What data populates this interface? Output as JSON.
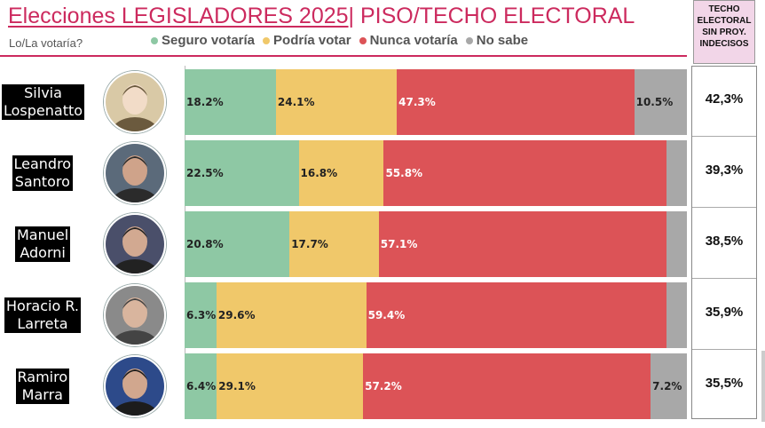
{
  "header": {
    "title_part1": "Elecciones LEGISLADORES 2025",
    "title_sep": "|",
    "title_part2": " PISO/TECHO ELECTORAL",
    "subtitle": "Lo/La votaría?"
  },
  "techo_header": [
    "TECHO",
    "ELECTORAL",
    "SIN PROY.",
    "INDECISOS"
  ],
  "colors": {
    "seguro": "#8ec8a4",
    "podria": "#f0c86a",
    "nunca": "#dc5357",
    "nosabe": "#a8a8a8",
    "accent": "#cc2a5e"
  },
  "chart_data": {
    "type": "bar",
    "orientation": "horizontal",
    "stacked": true,
    "categories": [
      "Silvia Lospenatto",
      "Leandro Santoro",
      "Manuel Adorni",
      "Horacio R. Larreta",
      "Ramiro Marra"
    ],
    "name_lines": [
      [
        "Silvia",
        "Lospenatto"
      ],
      [
        "Leandro",
        "Santoro"
      ],
      [
        "Manuel",
        "Adorni"
      ],
      [
        "Horacio R.",
        "Larreta"
      ],
      [
        "Ramiro",
        "Marra"
      ]
    ],
    "series": [
      {
        "name": "Seguro votaría",
        "key": "seguro",
        "values": [
          18.2,
          22.5,
          20.8,
          6.3,
          6.4
        ],
        "labels": [
          "18.2%",
          "22.5%",
          "20.8%",
          "6.3%",
          "6.4%"
        ]
      },
      {
        "name": "Podría votar",
        "key": "podria",
        "values": [
          24.1,
          16.8,
          17.7,
          29.6,
          29.1
        ],
        "labels": [
          "24.1%",
          "16.8%",
          "17.7%",
          "29.6%",
          "29.1%"
        ]
      },
      {
        "name": "Nunca votaría",
        "key": "nunca",
        "values": [
          47.3,
          55.8,
          57.1,
          59.4,
          57.2
        ],
        "labels": [
          "47.3%",
          "55.8%",
          "57.1%",
          "59.4%",
          "57.2%"
        ]
      },
      {
        "name": "No sabe",
        "key": "nosabe",
        "values": [
          10.5,
          4.0,
          4.0,
          4.0,
          7.2
        ],
        "labels": [
          "10.5%",
          "",
          "",
          "",
          "7.2%"
        ]
      }
    ],
    "techo": [
      "42,3%",
      "39,3%",
      "38,5%",
      "35,9%",
      "35,5%"
    ],
    "xlim": [
      0,
      100
    ]
  }
}
